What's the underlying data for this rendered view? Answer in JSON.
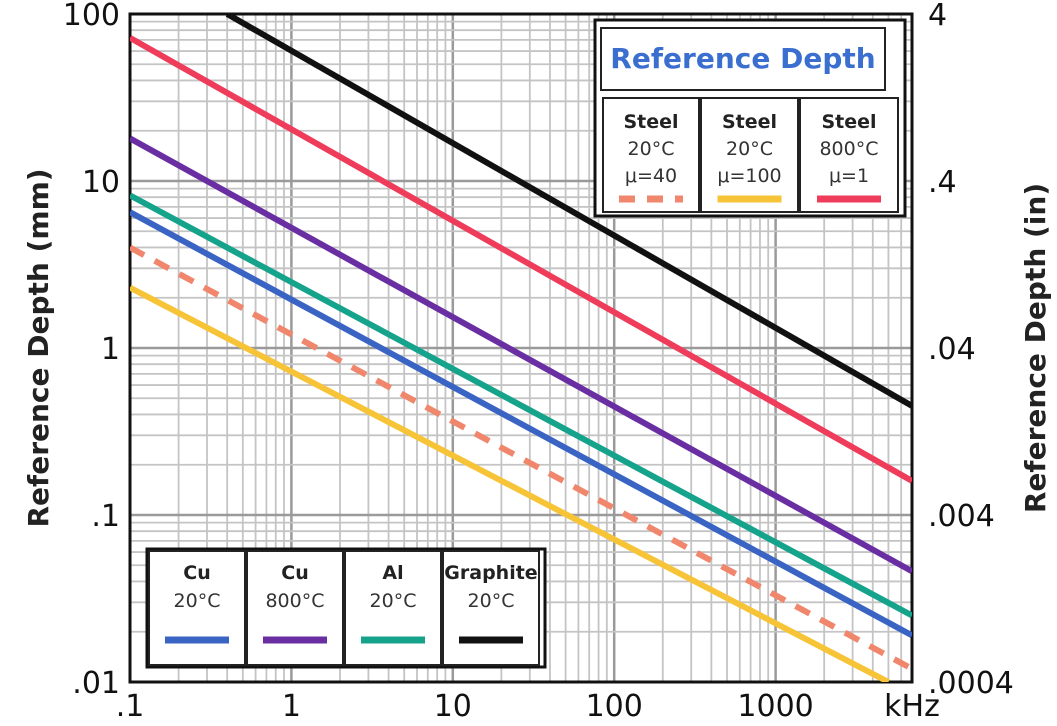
{
  "chart_data": {
    "type": "line",
    "title": "Reference Depth",
    "xscale": "log",
    "yscale": "log",
    "xlim": [
      0.1,
      7000
    ],
    "ylim": [
      0.01,
      100
    ],
    "y2lim": [
      0.0004,
      4
    ],
    "x_ticks": [
      ".1",
      "1",
      "10",
      "100",
      "1000"
    ],
    "x_unit_label": "kHz",
    "y_ticks": [
      ".01",
      ".1",
      "1",
      "10",
      "100"
    ],
    "y2_ticks": [
      ".0004",
      ".004",
      ".04",
      ".4",
      "4"
    ],
    "ylabel": "Reference Depth (mm)",
    "y2label": "Reference Depth (in)",
    "grid": true,
    "series": [
      {
        "name": "Graphite 20°C",
        "line1": "Graphite",
        "line2": "20°C",
        "color": "#111111",
        "dashed": false,
        "x": [
          0.4,
          7000
        ],
        "y": [
          100,
          0.45
        ]
      },
      {
        "name": "Steel 800°C μ=1",
        "line1": "Steel",
        "line2": "800°C",
        "line3": "μ=1",
        "color": "#ee3c5a",
        "dashed": false,
        "x": [
          0.1,
          7000
        ],
        "y": [
          72,
          0.16
        ]
      },
      {
        "name": "Cu 800°C",
        "line1": "Cu",
        "line2": "800°C",
        "color": "#6a2ea3",
        "dashed": false,
        "x": [
          0.1,
          7000
        ],
        "y": [
          18,
          0.046
        ]
      },
      {
        "name": "Al 20°C",
        "line1": "Al",
        "line2": "20°C",
        "color": "#16a38c",
        "dashed": false,
        "x": [
          0.1,
          7000
        ],
        "y": [
          8.2,
          0.025
        ]
      },
      {
        "name": "Cu 20°C",
        "line1": "Cu",
        "line2": "20°C",
        "color": "#3a64c4",
        "dashed": false,
        "x": [
          0.1,
          7000
        ],
        "y": [
          6.5,
          0.019
        ]
      },
      {
        "name": "Steel 20°C μ=40",
        "line1": "Steel",
        "line2": "20°C",
        "line3": "μ=40",
        "color": "#f0866c",
        "dashed": true,
        "x": [
          0.1,
          7000
        ],
        "y": [
          4.0,
          0.012
        ]
      },
      {
        "name": "Steel 20°C μ=100",
        "line1": "Steel",
        "line2": "20°C",
        "line3": "μ=100",
        "color": "#f7c437",
        "dashed": false,
        "x": [
          0.1,
          5000
        ],
        "y": [
          2.3,
          0.01
        ]
      }
    ],
    "legend_bottom": [
      "Cu 20°C",
      "Cu 800°C",
      "Al 20°C",
      "Graphite 20°C"
    ],
    "legend_top": [
      "Steel 20°C μ=40",
      "Steel 20°C μ=100",
      "Steel 800°C μ=1"
    ],
    "legend_placement": [
      "bottom-left",
      "top-right"
    ]
  }
}
